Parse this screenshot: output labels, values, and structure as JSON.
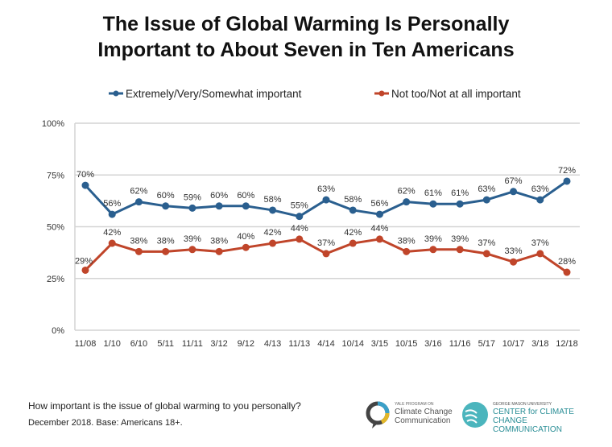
{
  "chart_data": {
    "type": "line",
    "title": "The Issue of Global Warming Is Personally Important to About Seven in Ten Americans",
    "categories": [
      "11/08",
      "1/10",
      "6/10",
      "5/11",
      "11/11",
      "3/12",
      "9/12",
      "4/13",
      "11/13",
      "4/14",
      "10/14",
      "3/15",
      "10/15",
      "3/16",
      "11/16",
      "5/17",
      "10/17",
      "3/18",
      "12/18"
    ],
    "series": [
      {
        "name": "Extremely/Very/Somewhat important",
        "color": "#2a5f8f",
        "values": [
          70,
          56,
          62,
          60,
          59,
          60,
          60,
          58,
          55,
          63,
          58,
          56,
          62,
          61,
          61,
          63,
          67,
          63,
          72
        ]
      },
      {
        "name": "Not too/Not at all important",
        "color": "#c0452a",
        "values": [
          29,
          42,
          38,
          38,
          39,
          38,
          40,
          42,
          44,
          37,
          42,
          44,
          38,
          39,
          39,
          37,
          33,
          37,
          28
        ]
      }
    ],
    "ylim": [
      0,
      100
    ],
    "yticks": [
      "0%",
      "25%",
      "50%",
      "75%",
      "100%"
    ],
    "grid": true,
    "legend": "top"
  },
  "footer": {
    "question": "How important is the issue of global warming to you personally?",
    "note": "December 2018. Base: Americans 18+."
  },
  "logos": {
    "yale_small": "YALE PROGRAM ON",
    "yale_main": "Climate Change Communication",
    "gmu_small": "GEORGE MASON UNIVERSITY",
    "gmu_main": "CENTER for CLIMATE CHANGE COMMUNICATION"
  }
}
